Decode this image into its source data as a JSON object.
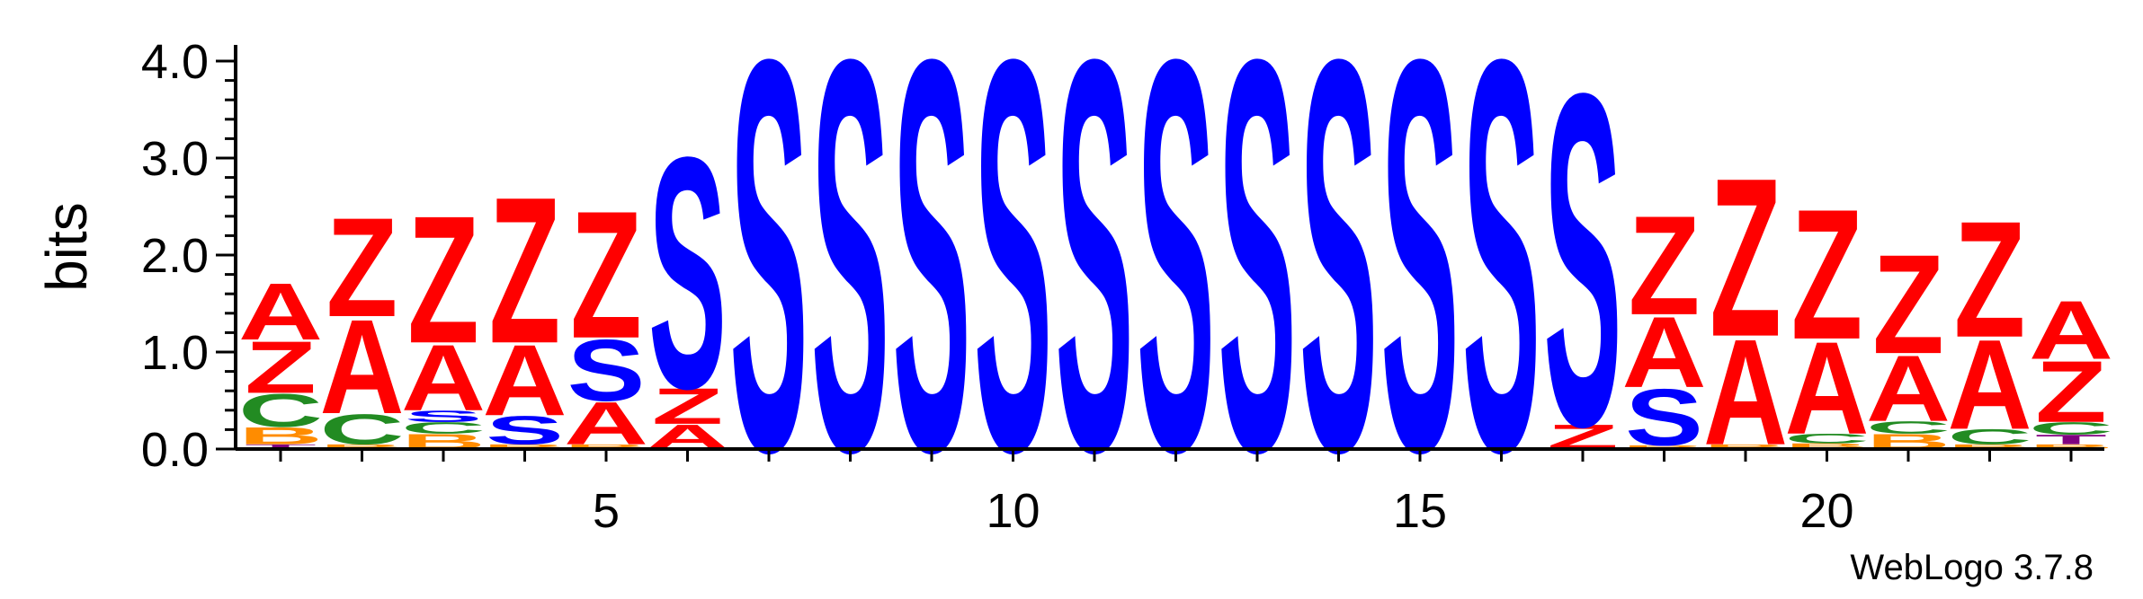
{
  "chart_data": {
    "type": "sequence-logo",
    "ylabel": "bits",
    "ylim": [
      0,
      4.3
    ],
    "yticks": [
      "0.0",
      "1.0",
      "2.0",
      "3.0",
      "4.0"
    ],
    "ytick_values": [
      0,
      1,
      2,
      3,
      4
    ],
    "xticks": [
      "5",
      "10",
      "15",
      "20"
    ],
    "xtick_values": [
      5,
      10,
      15,
      20
    ],
    "xlim": [
      0.5,
      23.5
    ],
    "colors": {
      "S": "#0000ff",
      "Z": "#ff0000",
      "A": "#ff0000",
      "C": "#228b22",
      "B": "#ff8c00",
      "T": "#800080"
    },
    "positions": [
      {
        "pos": 1,
        "stack": [
          [
            "T",
            0.05
          ],
          [
            "B",
            0.18
          ],
          [
            "C",
            0.35
          ],
          [
            "Z",
            0.55
          ],
          [
            "A",
            0.6
          ]
        ]
      },
      {
        "pos": 2,
        "stack": [
          [
            "B",
            0.05
          ],
          [
            "C",
            0.32
          ],
          [
            "A",
            1.0
          ],
          [
            "Z",
            1.05
          ]
        ]
      },
      {
        "pos": 3,
        "stack": [
          [
            "B",
            0.16
          ],
          [
            "C",
            0.12
          ],
          [
            "S",
            0.12
          ],
          [
            "A",
            0.7
          ],
          [
            "Z",
            1.35
          ]
        ]
      },
      {
        "pos": 4,
        "stack": [
          [
            "B",
            0.05
          ],
          [
            "S",
            0.3
          ],
          [
            "A",
            0.75
          ],
          [
            "Z",
            1.55
          ]
        ]
      },
      {
        "pos": 5,
        "stack": [
          [
            "B",
            0.05
          ],
          [
            "A",
            0.45
          ],
          [
            "S",
            0.65
          ],
          [
            "Z",
            1.35
          ]
        ]
      },
      {
        "pos": 6,
        "stack": [
          [
            "A",
            0.26
          ],
          [
            "Z",
            0.38
          ],
          [
            "S",
            2.45
          ]
        ]
      },
      {
        "pos": 7,
        "stack": [
          [
            "S",
            4.15
          ]
        ]
      },
      {
        "pos": 8,
        "stack": [
          [
            "S",
            4.15
          ]
        ]
      },
      {
        "pos": 9,
        "stack": [
          [
            "S",
            4.15
          ]
        ]
      },
      {
        "pos": 10,
        "stack": [
          [
            "S",
            4.15
          ]
        ]
      },
      {
        "pos": 11,
        "stack": [
          [
            "S",
            4.15
          ]
        ]
      },
      {
        "pos": 12,
        "stack": [
          [
            "S",
            4.15
          ]
        ]
      },
      {
        "pos": 13,
        "stack": [
          [
            "S",
            4.15
          ]
        ]
      },
      {
        "pos": 14,
        "stack": [
          [
            "S",
            4.15
          ]
        ]
      },
      {
        "pos": 15,
        "stack": [
          [
            "S",
            4.15
          ]
        ]
      },
      {
        "pos": 16,
        "stack": [
          [
            "S",
            4.15
          ]
        ]
      },
      {
        "pos": 17,
        "stack": [
          [
            "Z",
            0.26
          ],
          [
            "S",
            3.52
          ]
        ]
      },
      {
        "pos": 18,
        "stack": [
          [
            "B",
            0.04
          ],
          [
            "S",
            0.6
          ],
          [
            "A",
            0.75
          ],
          [
            "Z",
            1.05
          ]
        ]
      },
      {
        "pos": 19,
        "stack": [
          [
            "B",
            0.05
          ],
          [
            "A",
            1.12
          ],
          [
            "Z",
            1.68
          ]
        ]
      },
      {
        "pos": 20,
        "stack": [
          [
            "B",
            0.06
          ],
          [
            "C",
            0.1
          ],
          [
            "A",
            0.98
          ],
          [
            "Z",
            1.38
          ]
        ]
      },
      {
        "pos": 21,
        "stack": [
          [
            "B",
            0.16
          ],
          [
            "C",
            0.13
          ],
          [
            "A",
            0.7
          ],
          [
            "Z",
            1.05
          ]
        ]
      },
      {
        "pos": 22,
        "stack": [
          [
            "B",
            0.05
          ],
          [
            "C",
            0.16
          ],
          [
            "A",
            0.95
          ],
          [
            "Z",
            1.23
          ]
        ]
      },
      {
        "pos": 23,
        "stack": [
          [
            "B",
            0.05
          ],
          [
            "T",
            0.1
          ],
          [
            "C",
            0.13
          ],
          [
            "Z",
            0.65
          ],
          [
            "A",
            0.62
          ]
        ]
      }
    ],
    "credit": "WebLogo 3.7.8"
  }
}
